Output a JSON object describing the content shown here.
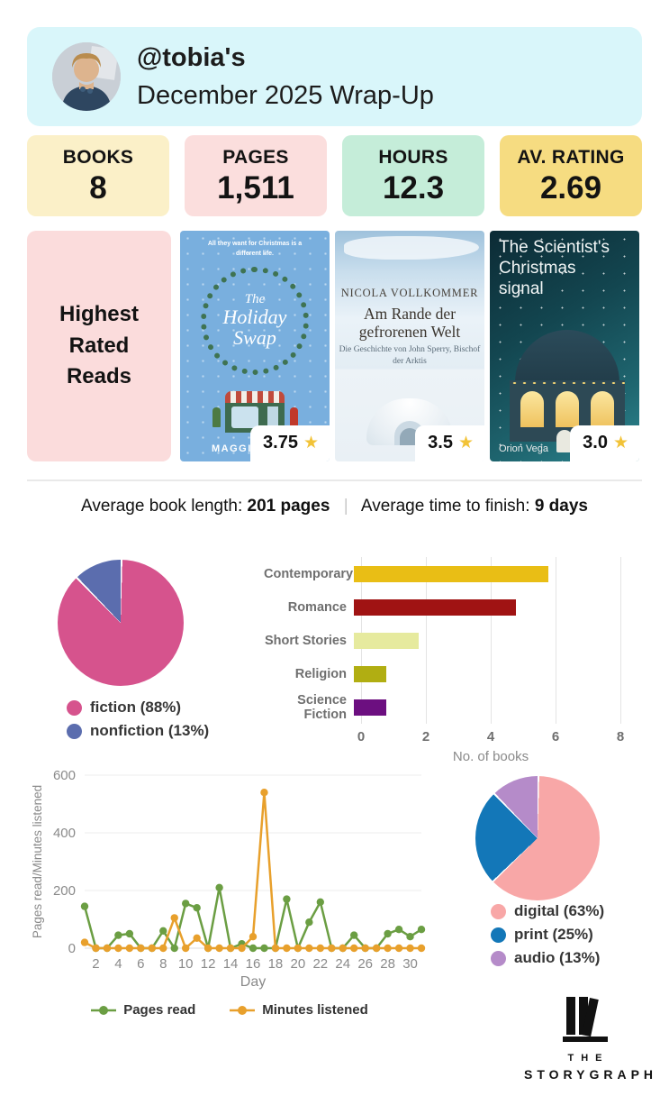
{
  "header": {
    "username_title": "@tobia's",
    "subtitle": "December 2025 Wrap-Up"
  },
  "stats": [
    {
      "label": "BOOKS",
      "value": "8",
      "bg": "#FBF0C8"
    },
    {
      "label": "PAGES",
      "value": "1,511",
      "bg": "#FBDEDD"
    },
    {
      "label": "HOURS",
      "value": "12.3",
      "bg": "#C5EDD9"
    },
    {
      "label": "AV. RATING",
      "value": "2.69",
      "bg": "#F6DC81"
    }
  ],
  "highest_rated": {
    "label": "Highest Rated Reads",
    "books": [
      {
        "tagline": "All they want for Christmas is a different life.",
        "title_lines": [
          "The",
          "Holiday",
          "Swap"
        ],
        "author": "MAGGIE KNOX",
        "rating": "3.75"
      },
      {
        "author": "NICOLA VOLLKOMMER",
        "title": "Am Rande der gefrorenen Welt",
        "subtitle": "Die Geschichte von John Sperry, Bischof der Arktis",
        "rating": "3.5"
      },
      {
        "title": "The Scientist's Christmas signal",
        "author": "Orion Vega",
        "rating": "3.0"
      }
    ]
  },
  "icons": {
    "star": "★"
  },
  "averages": {
    "book_length_label": "Average book length:",
    "book_length_value": "201 pages",
    "separator": "|",
    "time_label": "Average time to finish:",
    "time_value": "9 days"
  },
  "chart_data": [
    {
      "type": "pie",
      "name": "fiction-vs-nonfiction",
      "slices": [
        {
          "label": "fiction (88%)",
          "value": 87.5,
          "color": "#D6538D"
        },
        {
          "label": "nonfiction (13%)",
          "value": 12.5,
          "color": "#5B6DAE"
        }
      ],
      "legend_position": "bottom"
    },
    {
      "type": "bar",
      "name": "genres",
      "orientation": "horizontal",
      "categories": [
        "Contemporary",
        "Romance",
        "Short Stories",
        "Religion",
        "Science Fiction"
      ],
      "values": [
        6,
        5,
        2,
        1,
        1
      ],
      "colors": [
        "#E9BE15",
        "#A01313",
        "#E6EA9E",
        "#B1AE12",
        "#6C0F80"
      ],
      "xlabel": "No. of books",
      "xlim": [
        0,
        8
      ],
      "xticks": [
        0,
        2,
        4,
        6,
        8
      ],
      "grid": true
    },
    {
      "type": "line",
      "name": "daily-activity",
      "x": [
        1,
        2,
        3,
        4,
        5,
        6,
        7,
        8,
        9,
        10,
        11,
        12,
        13,
        14,
        15,
        16,
        17,
        18,
        19,
        20,
        21,
        22,
        23,
        24,
        25,
        26,
        27,
        28,
        29,
        30,
        31
      ],
      "series": [
        {
          "name": "Pages read",
          "color": "#6B9E43",
          "values": [
            145,
            0,
            0,
            45,
            50,
            0,
            0,
            60,
            0,
            155,
            140,
            0,
            210,
            0,
            15,
            0,
            0,
            0,
            170,
            0,
            90,
            160,
            0,
            0,
            45,
            0,
            0,
            50,
            65,
            40,
            65
          ]
        },
        {
          "name": "Minutes listened",
          "color": "#E8A02C",
          "values": [
            20,
            0,
            0,
            0,
            0,
            0,
            0,
            0,
            105,
            0,
            35,
            0,
            0,
            0,
            0,
            40,
            540,
            0,
            0,
            0,
            0,
            0,
            0,
            0,
            0,
            0,
            0,
            0,
            0,
            0,
            0
          ]
        }
      ],
      "xlabel": "Day",
      "ylabel": "Pages read/Minutes listened",
      "ylim": [
        0,
        600
      ],
      "yticks": [
        0,
        200,
        400,
        600
      ],
      "xticks": [
        2,
        4,
        6,
        8,
        10,
        12,
        14,
        16,
        18,
        20,
        22,
        24,
        26,
        28,
        30
      ],
      "grid": true,
      "legend_position": "bottom"
    },
    {
      "type": "pie",
      "name": "format",
      "slices": [
        {
          "label": "digital (63%)",
          "value": 62.5,
          "color": "#F8A7A7"
        },
        {
          "label": "print (25%)",
          "value": 25,
          "color": "#1377B8"
        },
        {
          "label": "audio (13%)",
          "value": 12.5,
          "color": "#B58BC9"
        }
      ],
      "legend_position": "bottom"
    }
  ],
  "logo": {
    "line1": "THE",
    "line2": "STORYGRAPH"
  },
  "colors": {
    "header_bg": "#D9F6FA",
    "highest_rated_bg": "#FBDCDC",
    "star": "#F2C338"
  }
}
